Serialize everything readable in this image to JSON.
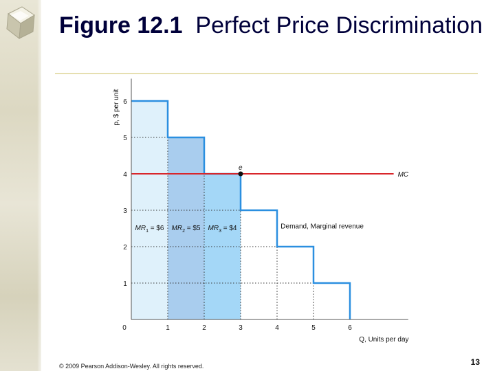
{
  "slide": {
    "title_bold": "Figure 12.1",
    "title_rest": "Perfect Price Discrimination",
    "footer": "© 2009 Pearson Addison-Wesley. All rights reserved.",
    "page_number": "13"
  },
  "chart_data": {
    "type": "bar",
    "xlabel": "Q, Units per day",
    "ylabel": "p, $ per unit",
    "xlim": [
      0,
      7.6
    ],
    "ylim": [
      0,
      6.5
    ],
    "x_ticks": [
      "0",
      "1",
      "2",
      "3",
      "4",
      "5",
      "6"
    ],
    "y_ticks": [
      "1",
      "2",
      "3",
      "4",
      "5",
      "6"
    ],
    "demand_steps": [
      {
        "q_start": 0,
        "q_end": 1,
        "price": 6
      },
      {
        "q_start": 1,
        "q_end": 2,
        "price": 5
      },
      {
        "q_start": 2,
        "q_end": 3,
        "price": 4
      },
      {
        "q_start": 3,
        "q_end": 4,
        "price": 3
      },
      {
        "q_start": 4,
        "q_end": 5,
        "price": 2
      },
      {
        "q_start": 5,
        "q_end": 6,
        "price": 1
      }
    ],
    "shaded_bars": [
      {
        "q_start": 0,
        "q_end": 1,
        "value": 6,
        "color": "#dff1fb"
      },
      {
        "q_start": 1,
        "q_end": 2,
        "value": 5,
        "color": "#a9cdee"
      },
      {
        "q_start": 2,
        "q_end": 3,
        "value": 4,
        "color": "#a4d7f7"
      }
    ],
    "mr_labels": [
      {
        "sub": "1",
        "value": "= $6",
        "q_center": 0.5
      },
      {
        "sub": "2",
        "value": "= $5",
        "q_center": 1.5
      },
      {
        "sub": "3",
        "value": "= $4",
        "q_center": 2.5
      }
    ],
    "mr_prefix": "MR",
    "mc": {
      "value": 4,
      "label": "MC",
      "color": "#d9262b"
    },
    "equilibrium": {
      "q": 3,
      "p": 4,
      "label": "e"
    },
    "demand_label": "Demand, Marginal revenue",
    "demand_color": "#2b8fe0"
  }
}
